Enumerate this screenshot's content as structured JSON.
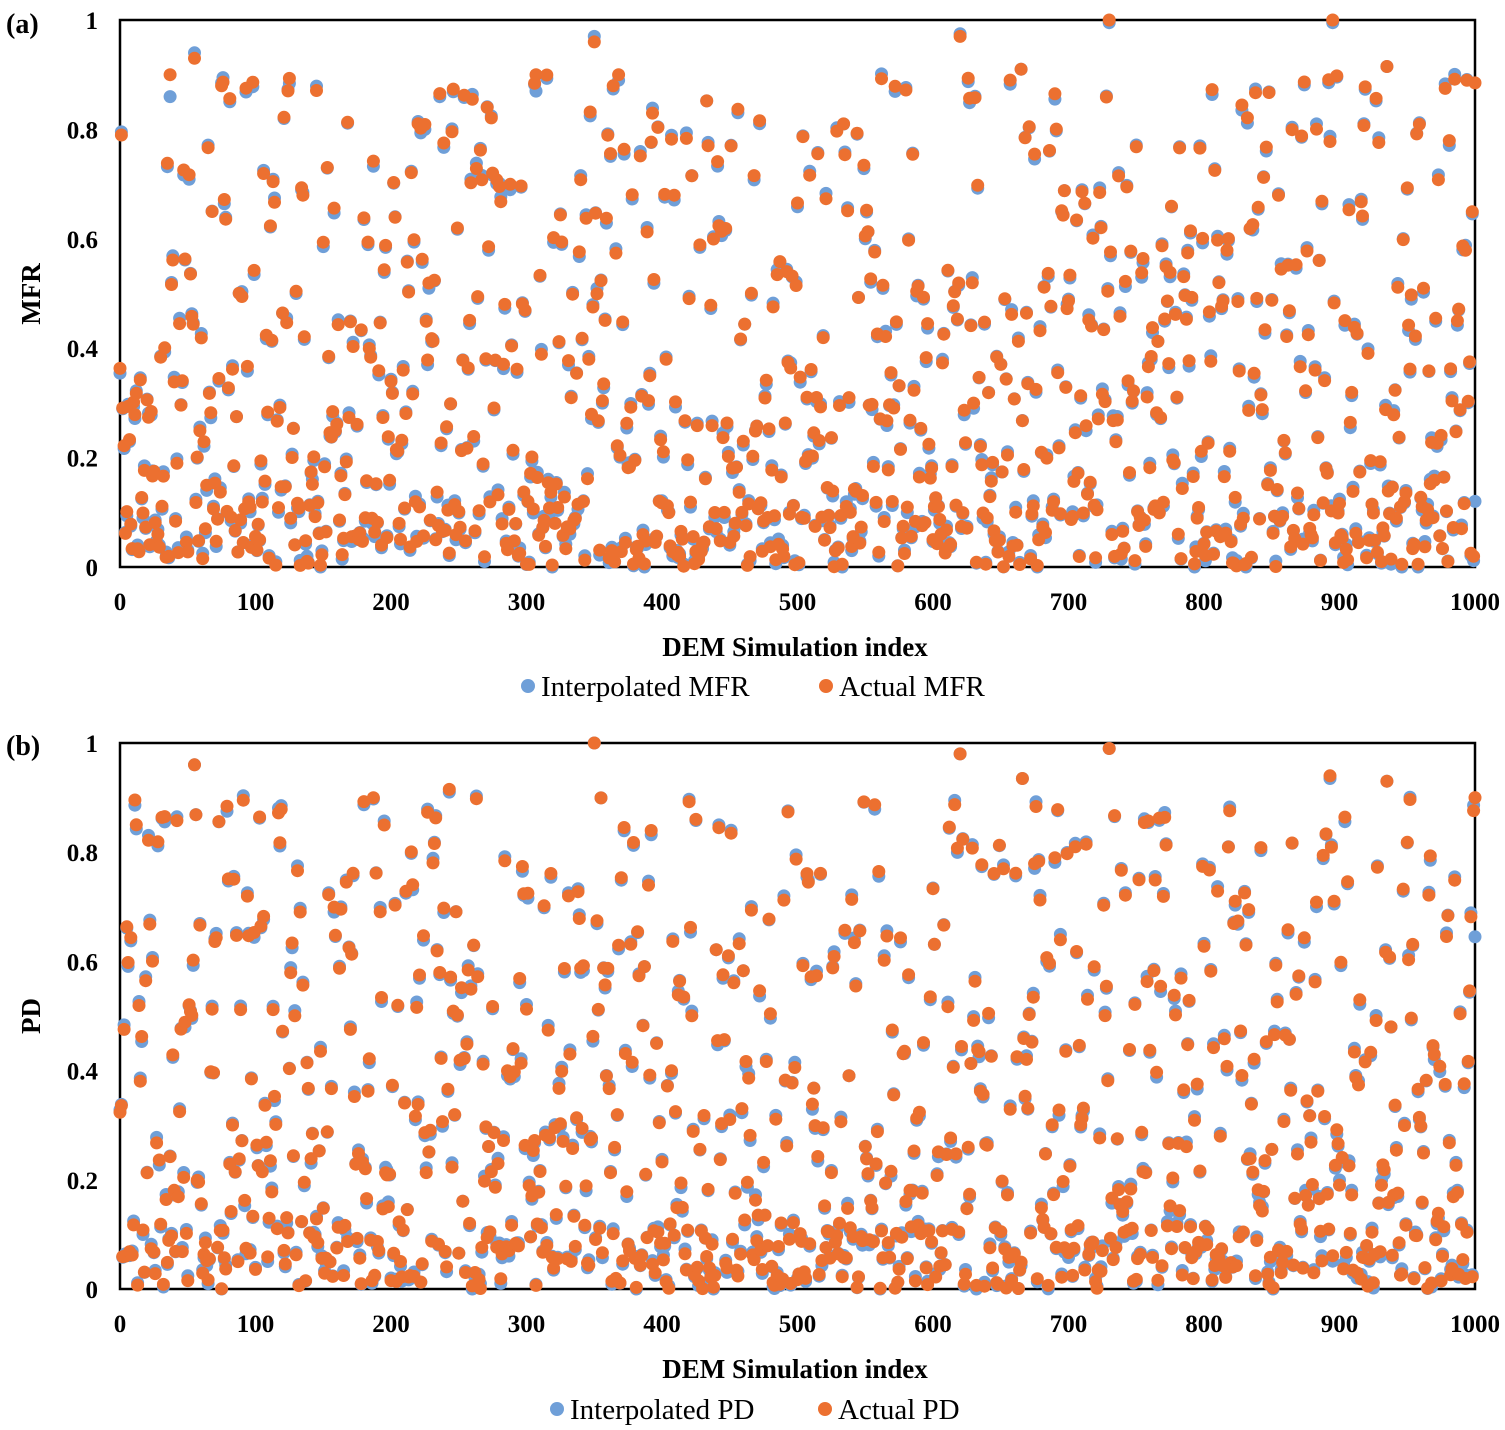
{
  "colors": {
    "interpolated": "#6f9fd8",
    "actual": "#ec7030",
    "axis": "#000000"
  },
  "chart_data": [
    {
      "type": "scatter",
      "panel_label": "(a)",
      "xlabel": "DEM Simulation index",
      "ylabel": "MFR",
      "xlim": [
        0,
        1000
      ],
      "ylim": [
        0,
        1
      ],
      "xticks": [
        "0",
        "100",
        "200",
        "300",
        "400",
        "500",
        "600",
        "700",
        "800",
        "900",
        "1000"
      ],
      "yticks": [
        "0",
        "0.2",
        "0.4",
        "0.6",
        "0.8",
        "1"
      ],
      "grid": false,
      "legend_position": "bottom",
      "point_count": 1000,
      "series": [
        {
          "name": "Interpolated MFR",
          "color": "#6f9fd8"
        },
        {
          "name": "Actual MFR",
          "color": "#ec7030"
        }
      ],
      "highlights": [
        {
          "x": 350,
          "interp": 0.97,
          "actual": 0.96
        },
        {
          "x": 730,
          "interp": 0.995,
          "actual": 1.0
        },
        {
          "x": 895,
          "interp": 0.995,
          "actual": 1.0
        },
        {
          "x": 620,
          "interp": 0.975,
          "actual": 0.97
        },
        {
          "x": 55,
          "interp": 0.94,
          "actual": 0.93
        },
        {
          "x": 37,
          "interp": 0.86,
          "actual": 0.9
        },
        {
          "x": 307,
          "interp": 0.87,
          "actual": 0.9
        },
        {
          "x": 368,
          "interp": 0.89,
          "actual": 0.9
        },
        {
          "x": 935,
          "interp": 0.915,
          "actual": 0.915
        },
        {
          "x": 665,
          "interp": 0.91,
          "actual": 0.91
        },
        {
          "x": 1000,
          "interp": 0.12,
          "actual": 0.885
        }
      ]
    },
    {
      "type": "scatter",
      "panel_label": "(b)",
      "xlabel": "DEM Simulation index",
      "ylabel": "PD",
      "xlim": [
        0,
        1000
      ],
      "ylim": [
        0,
        1
      ],
      "xticks": [
        "0",
        "100",
        "200",
        "300",
        "400",
        "500",
        "600",
        "700",
        "800",
        "900",
        "1000"
      ],
      "yticks": [
        "0",
        "0.2",
        "0.4",
        "0.6",
        "0.8",
        "1"
      ],
      "grid": false,
      "legend_position": "bottom",
      "point_count": 1000,
      "series": [
        {
          "name": "Interpolated PD",
          "color": "#6f9fd8"
        },
        {
          "name": "Actual PD",
          "color": "#ec7030"
        }
      ],
      "highlights": [
        {
          "x": 350,
          "interp": 1.0,
          "actual": 1.0
        },
        {
          "x": 730,
          "interp": 0.99,
          "actual": 0.99
        },
        {
          "x": 620,
          "interp": 0.98,
          "actual": 0.98
        },
        {
          "x": 55,
          "interp": 0.96,
          "actual": 0.96
        },
        {
          "x": 893,
          "interp": 0.935,
          "actual": 0.94
        },
        {
          "x": 666,
          "interp": 0.935,
          "actual": 0.935
        },
        {
          "x": 935,
          "interp": 0.93,
          "actual": 0.93
        },
        {
          "x": 243,
          "interp": 0.91,
          "actual": 0.915
        },
        {
          "x": 1000,
          "interp": 0.645,
          "actual": 0.9
        }
      ]
    }
  ]
}
